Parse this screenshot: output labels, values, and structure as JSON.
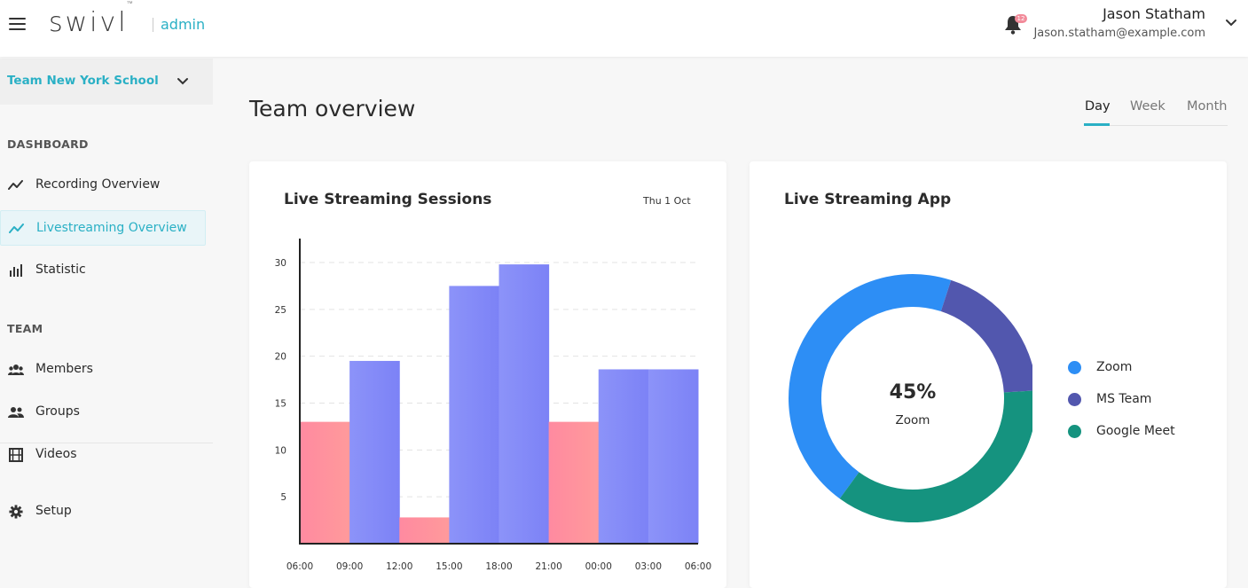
{
  "header": {
    "logo_text": "swivl",
    "logo_tm": "™",
    "admin_label": "admin",
    "notification_count": "12",
    "user_name": "Jason Statham",
    "user_email": "Jason.statham@example.com"
  },
  "sidebar": {
    "team_name": "Team New York School",
    "dashboard_title": "DASHBOARD",
    "dashboard_items": [
      {
        "label": "Recording Overview",
        "icon": "trend-line-icon",
        "active": false
      },
      {
        "label": "Livestreaming Overview",
        "icon": "trend-line-icon",
        "active": true
      },
      {
        "label": "Statistic",
        "icon": "bar-chart-icon",
        "active": false
      }
    ],
    "team_title": "TEAM",
    "team_items": [
      {
        "label": "Members",
        "icon": "members-icon"
      },
      {
        "label": "Groups",
        "icon": "groups-icon"
      },
      {
        "label": "Videos",
        "icon": "film-icon"
      }
    ],
    "setup_label": "Setup"
  },
  "main": {
    "title": "Team overview",
    "range_tabs": [
      {
        "label": "Day",
        "active": true
      },
      {
        "label": "Week",
        "active": false
      },
      {
        "label": "Month",
        "active": false
      }
    ]
  },
  "sessions_card": {
    "title": "Live Streaming Sessions",
    "date": "Thu 1 Oct"
  },
  "app_card": {
    "title": "Live Streaming App",
    "center_value": "45%",
    "center_label": "Zoom"
  },
  "colors": {
    "accent": "#2ab0c5",
    "bar_pink": "#ff8ea0",
    "bar_blue": "#8a8ff8",
    "zoom": "#2d8ef5",
    "ms_team": "#5257ae",
    "google_meet": "#15937f"
  },
  "chart_data": [
    {
      "type": "bar",
      "title": "Live Streaming Sessions",
      "x_tick_labels": [
        "06:00",
        "09:00",
        "12:00",
        "15:00",
        "18:00",
        "21:00",
        "00:00",
        "03:00",
        "06:00"
      ],
      "y_ticks": [
        5,
        10,
        15,
        20,
        25,
        30
      ],
      "ylim": [
        0,
        32
      ],
      "grid": true,
      "bars": [
        {
          "value": 13,
          "color": "pink"
        },
        {
          "value": 19.5,
          "color": "blue"
        },
        {
          "value": 2.8,
          "color": "pink"
        },
        {
          "value": 27.5,
          "color": "blue"
        },
        {
          "value": 29.8,
          "color": "blue"
        },
        {
          "value": 13,
          "color": "pink"
        },
        {
          "value": 18.6,
          "color": "blue"
        },
        {
          "value": 18.6,
          "color": "blue"
        }
      ]
    },
    {
      "type": "pie",
      "title": "Live Streaming App",
      "donut": true,
      "legend_position": "right",
      "slices": [
        {
          "label": "Zoom",
          "value": 45,
          "color": "#2d8ef5"
        },
        {
          "label": "MS Team",
          "value": 19,
          "color": "#5257ae"
        },
        {
          "label": "Google Meet",
          "value": 36,
          "color": "#15937f"
        }
      ]
    }
  ]
}
